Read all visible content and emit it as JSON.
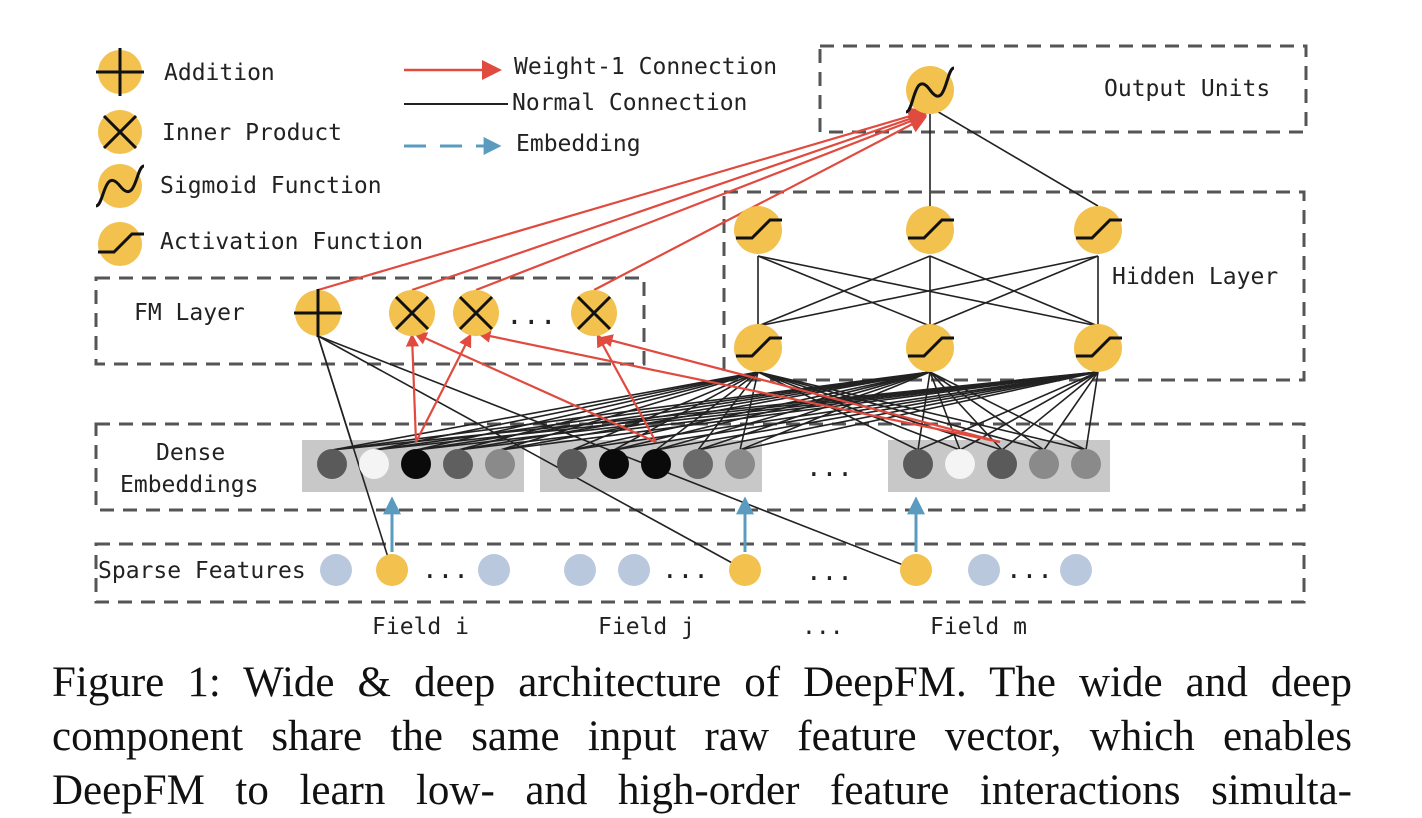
{
  "legend": {
    "addition": "Addition",
    "inner_product": "Inner Product",
    "sigmoid": "Sigmoid Function",
    "activation": "Activation Function",
    "weight1": "Weight-1 Connection",
    "normal": "Normal Connection",
    "embedding": "Embedding"
  },
  "layers": {
    "output": "Output Units",
    "hidden": "Hidden Layer",
    "fm": "FM Layer",
    "dense_line1": "Dense",
    "dense_line2": "Embeddings",
    "sparse": "Sparse Features"
  },
  "fields": {
    "i": "Field i",
    "j": "Field j",
    "m": "Field m",
    "ellipsis": "..."
  },
  "ellipsis": {
    "fm": "...",
    "sparse": "...",
    "dense": "..."
  },
  "caption": {
    "line1": "Figure 1: Wide & deep architecture of DeepFM. The wide and deep",
    "line2": "component share the same input raw feature vector, which enables",
    "line3": "DeepFM to learn low- and high-order feature interactions simulta-"
  },
  "colors": {
    "node_yellow": "#f2c14e",
    "node_blue": "#b9c8dd",
    "weight1_red": "#e04a3f",
    "embedding_blue": "#5b9bc0",
    "dense_bg": "#c8c8c8"
  }
}
